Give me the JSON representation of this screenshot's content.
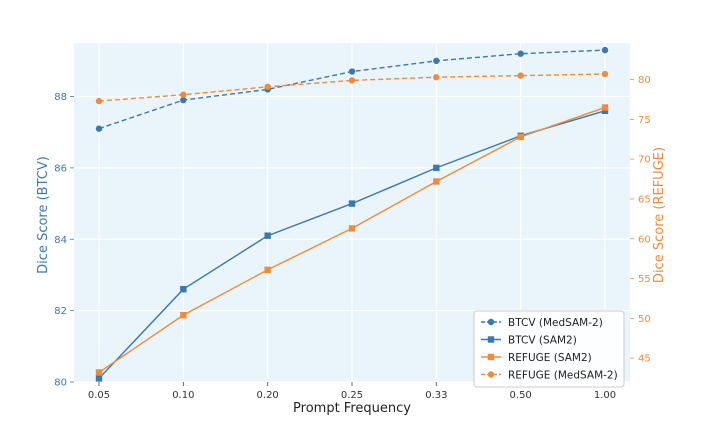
{
  "chart_data": {
    "type": "line",
    "title": "",
    "xlabel": "Prompt Frequency",
    "ylabel_left": "Dice Score (BTCV)",
    "ylabel_right": "Dice Score (REFUGE)",
    "categories": [
      "0.05",
      "0.10",
      "0.20",
      "0.25",
      "0.33",
      "0.50",
      "1.00"
    ],
    "ylim_left": [
      80,
      89.5
    ],
    "yticks_left": [
      "80",
      "82",
      "84",
      "86",
      "88"
    ],
    "ylim_right": [
      42,
      84.6
    ],
    "yticks_right": [
      "45",
      "50",
      "55",
      "60",
      "65",
      "70",
      "75",
      "80"
    ],
    "grid": true,
    "legend_position": "lower-right",
    "colors": {
      "btcv": "#3a78b0",
      "refuge": "#f08b3a",
      "left_axis_label": "#3a78b0",
      "right_axis_label": "#f08b3a",
      "plot_bg": "#eaf4fb"
    },
    "series": [
      {
        "name": "BTCV (MedSAM-2)",
        "axis": "left",
        "style": "dashed",
        "marker": "circle",
        "color": "#3a78b0",
        "values": [
          87.1,
          87.9,
          88.2,
          88.7,
          89.0,
          89.2,
          89.3
        ]
      },
      {
        "name": "BTCV (SAM2)",
        "axis": "left",
        "style": "solid",
        "marker": "square",
        "color": "#3a78b0",
        "values": [
          80.1,
          82.6,
          84.1,
          85.0,
          86.0,
          86.9,
          87.6
        ]
      },
      {
        "name": "REFUGE (SAM2)",
        "axis": "right",
        "style": "solid",
        "marker": "square",
        "color": "#f08b3a",
        "values": [
          43.2,
          50.4,
          56.1,
          61.3,
          67.2,
          72.8,
          76.5
        ]
      },
      {
        "name": "REFUGE (MedSAM-2)",
        "axis": "right",
        "style": "dashed",
        "marker": "circle",
        "color": "#f08b3a",
        "values": [
          77.3,
          78.1,
          79.1,
          79.9,
          80.3,
          80.5,
          80.7
        ]
      }
    ]
  }
}
